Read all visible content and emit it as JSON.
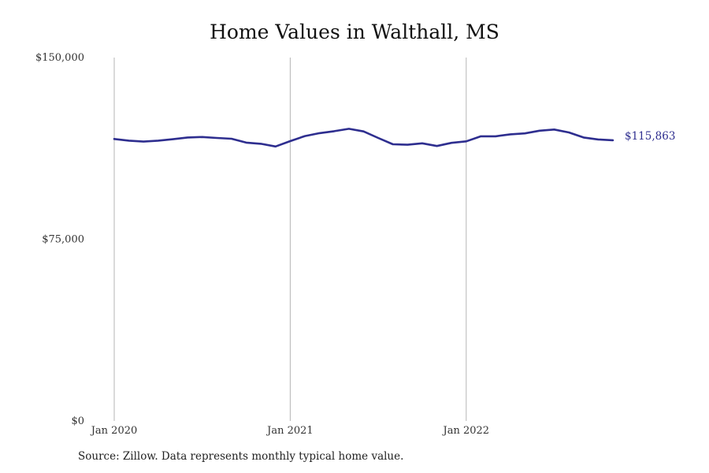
{
  "chart_data": {
    "type": "line",
    "title": "Home Values in Walthall, MS",
    "xlabel": "",
    "ylabel": "",
    "ylim": [
      0,
      150000
    ],
    "y_ticks": [
      {
        "value": 0,
        "label": "$0"
      },
      {
        "value": 75000,
        "label": "$75,000"
      },
      {
        "value": 150000,
        "label": "$150,000"
      }
    ],
    "x_ticks": [
      {
        "value": "2020-01",
        "label": "Jan 2020"
      },
      {
        "value": "2021-01",
        "label": "Jan 2021"
      },
      {
        "value": "2022-01",
        "label": "Jan 2022"
      }
    ],
    "grid": "vertical at x ticks",
    "series": [
      {
        "color": "#2e2e8f",
        "x": [
          "2020-01",
          "2020-02",
          "2020-03",
          "2020-04",
          "2020-05",
          "2020-06",
          "2020-07",
          "2020-08",
          "2020-09",
          "2020-10",
          "2020-11",
          "2020-12",
          "2021-01",
          "2021-02",
          "2021-03",
          "2021-04",
          "2021-05",
          "2021-06",
          "2021-07",
          "2021-08",
          "2021-09",
          "2021-10",
          "2021-11",
          "2021-12",
          "2022-01",
          "2022-02",
          "2022-03",
          "2022-04",
          "2022-05",
          "2022-06",
          "2022-07",
          "2022-08",
          "2022-09",
          "2022-10",
          "2022-11"
        ],
        "values": [
          116400,
          115700,
          115300,
          115700,
          116300,
          117000,
          117200,
          116800,
          116500,
          114900,
          114400,
          113300,
          115500,
          117600,
          118800,
          119600,
          120600,
          119500,
          116800,
          114200,
          114000,
          114600,
          113500,
          114800,
          115400,
          117500,
          117500,
          118300,
          118700,
          119800,
          120300,
          119100,
          117000,
          116200,
          115863
        ]
      }
    ],
    "end_label": "$115,863"
  },
  "source_note": "Source: Zillow. Data represents monthly typical home value."
}
